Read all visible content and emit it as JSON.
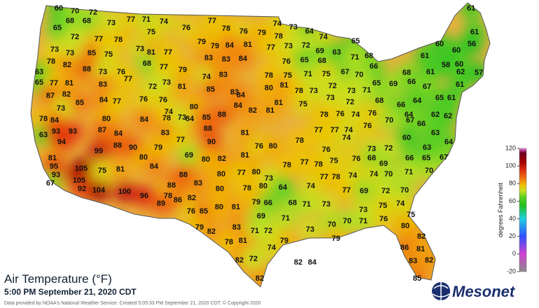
{
  "title": "Air Temperature (°F)",
  "subtitle": "5:00 PM September 21, 2020 CDT",
  "credit": "Data provided by NOAA's National Weather Service. Created 5:05:33 PM September 21, 2020 CDT. © Copyright 2020",
  "logo": "Mesonet",
  "colorbar": {
    "label": "degrees Fahrenheit",
    "lim": [
      -20,
      120
    ],
    "ticks": [
      120,
      100,
      80,
      60,
      40,
      20,
      0,
      -20
    ]
  },
  "stations": [
    60,
    70,
    72,
    77,
    71,
    74,
    77,
    74,
    73,
    61,
    68,
    68,
    73,
    65,
    76,
    78,
    76,
    79,
    64,
    75,
    74,
    78,
    72,
    77,
    78,
    65,
    61,
    79,
    79,
    84,
    81,
    56,
    60,
    73,
    73,
    85,
    75,
    73,
    81,
    77,
    77,
    73,
    72,
    69,
    63,
    71,
    68,
    60,
    61,
    78,
    82,
    68,
    77,
    83,
    83,
    84,
    76,
    65,
    68,
    66,
    58,
    60,
    88,
    73,
    76,
    79,
    67,
    70,
    68,
    61,
    62,
    57,
    63,
    74,
    83,
    78,
    75,
    71,
    75,
    65,
    69,
    66,
    67,
    61,
    65,
    77,
    81,
    77,
    83,
    72,
    73,
    81,
    85,
    83,
    80,
    81,
    78,
    73,
    72,
    73,
    71,
    65,
    61,
    87,
    82,
    85,
    84,
    77,
    76,
    76,
    80,
    84,
    81,
    75,
    73,
    72,
    68,
    66,
    64,
    78,
    73,
    74,
    84,
    85,
    88,
    84,
    82,
    81,
    78,
    76,
    74,
    76,
    64,
    62,
    62,
    84,
    80,
    84,
    78,
    73,
    88,
    81,
    77,
    77,
    74,
    76,
    70,
    67,
    66,
    63,
    60,
    64,
    63,
    93,
    93,
    87,
    83,
    84,
    94,
    88,
    90,
    79,
    77,
    90,
    82,
    81,
    76,
    80,
    78,
    76,
    74,
    73,
    72,
    63,
    99,
    80,
    69,
    80,
    80,
    77,
    80,
    78,
    77,
    78,
    75,
    76,
    68,
    69,
    66,
    65,
    67,
    81,
    95,
    93,
    105,
    105,
    67,
    92,
    104,
    75,
    81,
    84,
    88,
    78,
    83,
    80,
    78,
    80,
    73,
    64,
    74,
    77,
    78,
    74,
    74,
    70,
    71,
    70,
    100,
    96,
    88,
    86,
    82,
    89,
    76,
    85,
    80,
    81,
    79,
    66,
    68,
    71,
    73,
    77,
    69,
    72,
    70,
    74,
    75,
    73,
    69,
    71,
    70,
    70,
    71,
    76,
    75,
    79,
    82,
    83,
    71,
    72,
    73,
    79,
    78,
    81,
    79,
    74,
    82,
    72,
    82,
    84,
    80,
    82,
    86,
    81,
    83,
    82,
    82,
    85
  ]
}
